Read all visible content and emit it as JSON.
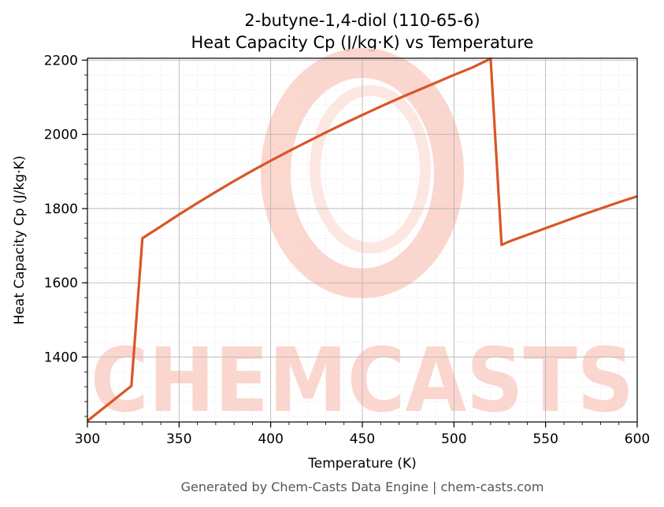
{
  "chart_data": {
    "type": "line",
    "title_line1": "2-butyne-1,4-diol (110-65-6)",
    "title_line2": "Heat Capacity Cp (J/kg·K) vs Temperature",
    "xlabel": "Temperature (K)",
    "ylabel": "Heat Capacity Cp (J/kg·K)",
    "xlim": [
      300,
      600
    ],
    "ylim": [
      1225,
      2205
    ],
    "x_ticks": [
      300,
      350,
      400,
      450,
      500,
      550,
      600
    ],
    "y_ticks": [
      1400,
      1600,
      1800,
      2000,
      2200
    ],
    "x_minor_step": 10,
    "y_minor_step": 40,
    "grid": true,
    "line_color": "#d95627",
    "series": [
      {
        "x": [
          300,
          324,
          330,
          340,
          350,
          360,
          370,
          380,
          390,
          400,
          410,
          420,
          430,
          440,
          450,
          460,
          470,
          480,
          490,
          500,
          510,
          520,
          526,
          530,
          540,
          550,
          560,
          570,
          580,
          590,
          600
        ],
        "values": [
          1228,
          1322,
          1720,
          1752,
          1784,
          1815,
          1845,
          1874,
          1902,
          1929,
          1955,
          1980,
          2005,
          2029,
          2052,
          2075,
          2097,
          2118,
          2139,
          2160,
          2180,
          2204,
          1702,
          1711,
          1729,
          1747,
          1765,
          1783,
          1800,
          1817,
          1833
        ]
      }
    ]
  },
  "watermark": {
    "text": "CHEMCASTS",
    "color": "#fbd0c6"
  },
  "footer": {
    "text": "Generated by Chem-Casts Data Engine | chem-casts.com"
  }
}
